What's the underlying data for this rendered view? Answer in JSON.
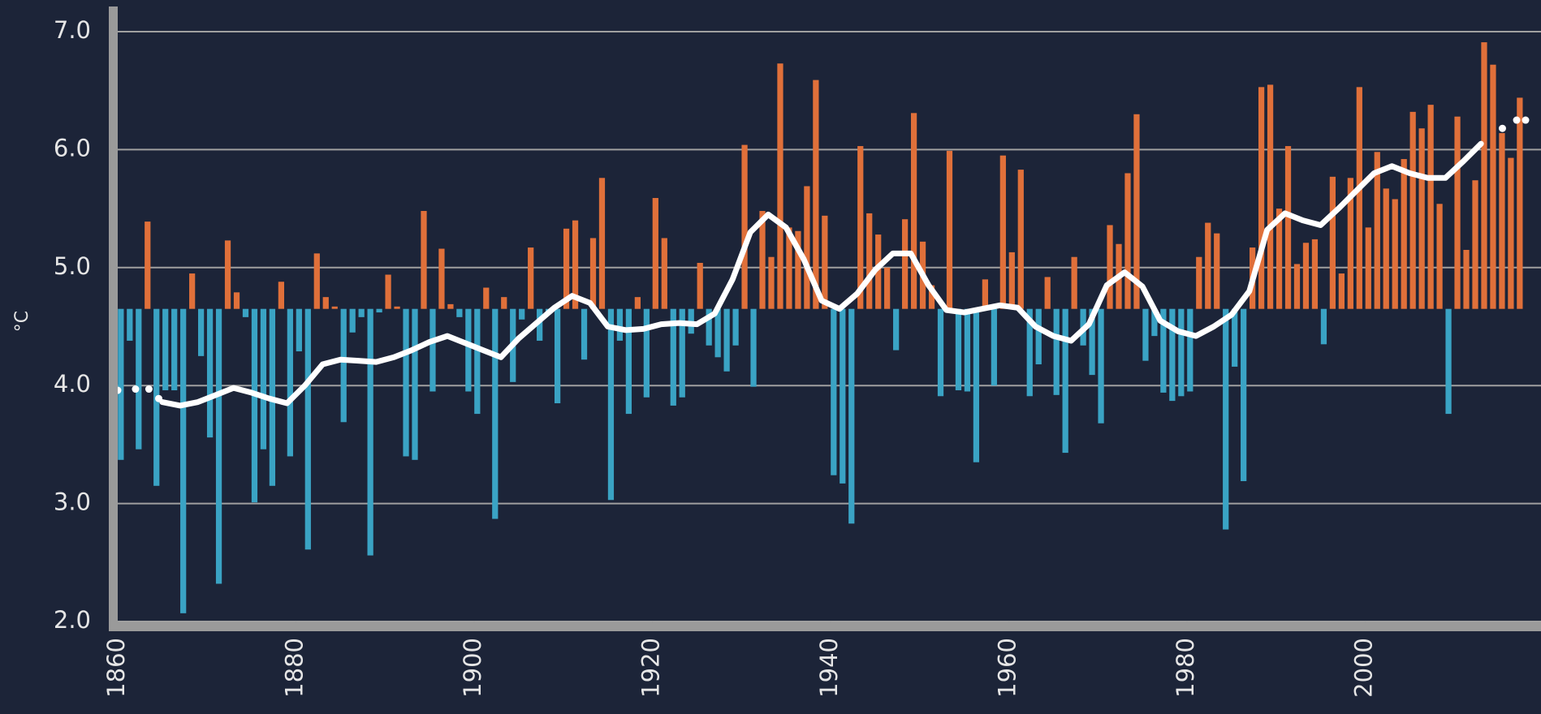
{
  "chart_data": {
    "type": "bar",
    "y_label": "°C",
    "baseline": 4.65,
    "color_above": "#e0703a",
    "color_below": "#3aa3c4",
    "line_color": "#ffffff",
    "grid": true,
    "xlim": [
      1860,
      2018
    ],
    "ylim": [
      2,
      7
    ],
    "xticks": [
      1860,
      1880,
      1900,
      1920,
      1940,
      1960,
      1980,
      2000
    ],
    "yticks": [
      {
        "value": 2,
        "label": "2.0"
      },
      {
        "value": 3,
        "label": "3.0"
      },
      {
        "value": 4,
        "label": "4.0"
      },
      {
        "value": 5,
        "label": "5.0"
      },
      {
        "value": 6,
        "label": "6.0"
      },
      {
        "value": 7,
        "label": "7.0"
      }
    ],
    "x": [
      1860,
      1861,
      1862,
      1863,
      1864,
      1865,
      1866,
      1867,
      1868,
      1869,
      1870,
      1871,
      1872,
      1873,
      1874,
      1875,
      1876,
      1877,
      1878,
      1879,
      1880,
      1881,
      1882,
      1883,
      1884,
      1885,
      1886,
      1887,
      1888,
      1889,
      1890,
      1891,
      1892,
      1893,
      1894,
      1895,
      1896,
      1897,
      1898,
      1899,
      1900,
      1901,
      1902,
      1903,
      1904,
      1905,
      1906,
      1907,
      1908,
      1909,
      1910,
      1911,
      1912,
      1913,
      1914,
      1915,
      1916,
      1917,
      1918,
      1919,
      1920,
      1921,
      1922,
      1923,
      1924,
      1925,
      1926,
      1927,
      1928,
      1929,
      1930,
      1931,
      1932,
      1933,
      1934,
      1935,
      1936,
      1937,
      1938,
      1939,
      1940,
      1941,
      1942,
      1943,
      1944,
      1945,
      1946,
      1947,
      1948,
      1949,
      1950,
      1951,
      1952,
      1953,
      1954,
      1955,
      1956,
      1957,
      1958,
      1959,
      1960,
      1961,
      1962,
      1963,
      1964,
      1965,
      1966,
      1967,
      1968,
      1969,
      1970,
      1971,
      1972,
      1973,
      1974,
      1975,
      1976,
      1977,
      1978,
      1979,
      1980,
      1981,
      1982,
      1983,
      1984,
      1985,
      1986,
      1987,
      1988,
      1989,
      1990,
      1991,
      1992,
      1993,
      1994,
      1995,
      1996,
      1997,
      1998,
      1999,
      2000,
      2001,
      2002,
      2003,
      2004,
      2005,
      2006,
      2007,
      2008,
      2009,
      2010,
      2011,
      2012,
      2013,
      2014,
      2015,
      2016,
      2017
    ],
    "values": [
      3.37,
      4.38,
      3.46,
      5.39,
      3.15,
      3.96,
      3.96,
      2.07,
      4.95,
      4.25,
      3.56,
      2.32,
      5.23,
      4.79,
      4.58,
      3.01,
      3.46,
      3.15,
      4.88,
      3.4,
      4.29,
      2.61,
      5.12,
      4.75,
      4.67,
      3.69,
      4.45,
      4.58,
      2.56,
      4.62,
      4.94,
      4.67,
      3.4,
      3.37,
      5.48,
      3.95,
      5.16,
      4.69,
      4.58,
      3.95,
      3.76,
      4.83,
      2.87,
      4.75,
      4.03,
      4.56,
      5.17,
      4.38,
      4.62,
      3.85,
      5.33,
      5.4,
      4.22,
      5.25,
      5.76,
      3.03,
      4.38,
      3.76,
      4.75,
      3.9,
      5.59,
      5.25,
      3.83,
      3.9,
      4.44,
      5.04,
      4.34,
      4.24,
      4.12,
      4.34,
      6.04,
      3.99,
      5.48,
      5.09,
      6.73,
      5.34,
      5.31,
      5.69,
      6.59,
      5.44,
      3.24,
      3.17,
      2.83,
      6.03,
      5.46,
      5.28,
      5.0,
      4.3,
      5.41,
      6.31,
      5.22,
      4.85,
      3.91,
      5.99,
      3.96,
      3.95,
      3.35,
      4.9,
      4.0,
      5.95,
      5.13,
      5.83,
      3.91,
      4.18,
      4.92,
      3.92,
      3.43,
      5.09,
      4.34,
      4.09,
      3.68,
      5.36,
      5.2,
      5.8,
      6.3,
      4.21,
      4.42,
      3.94,
      3.87,
      3.91,
      3.95,
      5.09,
      5.38,
      5.29,
      2.78,
      4.16,
      3.19,
      5.17,
      6.53,
      6.55,
      5.5,
      6.03,
      5.03,
      5.21,
      5.24,
      4.35,
      5.77,
      4.95,
      5.76,
      6.53,
      5.34,
      5.98,
      5.67,
      5.58,
      5.92,
      6.32,
      6.18,
      6.38,
      5.54,
      3.76,
      6.28,
      5.15,
      5.74,
      6.91,
      6.72,
      6.14,
      5.93,
      6.44
    ],
    "smooth": {
      "x": [
        1865,
        1867,
        1869,
        1871,
        1873,
        1875,
        1877,
        1879,
        1881,
        1883,
        1885,
        1887,
        1889,
        1891,
        1893,
        1895,
        1897,
        1899,
        1901,
        1903,
        1905,
        1907,
        1909,
        1911,
        1913,
        1915,
        1917,
        1919,
        1921,
        1923,
        1925,
        1927,
        1929,
        1931,
        1933,
        1935,
        1937,
        1939,
        1941,
        1943,
        1945,
        1947,
        1949,
        1951,
        1953,
        1955,
        1957,
        1959,
        1961,
        1963,
        1965,
        1967,
        1969,
        1971,
        1973,
        1975,
        1977,
        1979,
        1981,
        1983,
        1985,
        1987,
        1989,
        1991,
        1993,
        1995,
        1997,
        1999,
        2001,
        2003,
        2005,
        2007,
        2009,
        2011,
        2013
      ],
      "values": [
        3.86,
        3.83,
        3.86,
        3.92,
        3.98,
        3.94,
        3.89,
        3.85,
        4.0,
        4.18,
        4.22,
        4.21,
        4.2,
        4.24,
        4.3,
        4.37,
        4.42,
        4.36,
        4.3,
        4.24,
        4.4,
        4.53,
        4.66,
        4.76,
        4.7,
        4.5,
        4.47,
        4.48,
        4.52,
        4.53,
        4.52,
        4.61,
        4.9,
        5.3,
        5.45,
        5.34,
        5.07,
        4.72,
        4.65,
        4.78,
        4.98,
        5.12,
        5.12,
        4.85,
        4.64,
        4.62,
        4.65,
        4.68,
        4.66,
        4.5,
        4.42,
        4.38,
        4.52,
        4.85,
        4.96,
        4.84,
        4.55,
        4.46,
        4.42,
        4.5,
        4.6,
        4.8,
        5.32,
        5.46,
        5.4,
        5.36,
        5.5,
        5.65,
        5.8,
        5.86,
        5.8,
        5.76,
        5.76,
        5.9,
        6.05
      ]
    },
    "dots": {
      "x": [
        1860,
        1862,
        1863.5,
        1864.6,
        2015.4,
        2017,
        2018
      ],
      "values": [
        3.96,
        3.97,
        3.97,
        3.89,
        6.18,
        6.25,
        6.25
      ]
    }
  }
}
